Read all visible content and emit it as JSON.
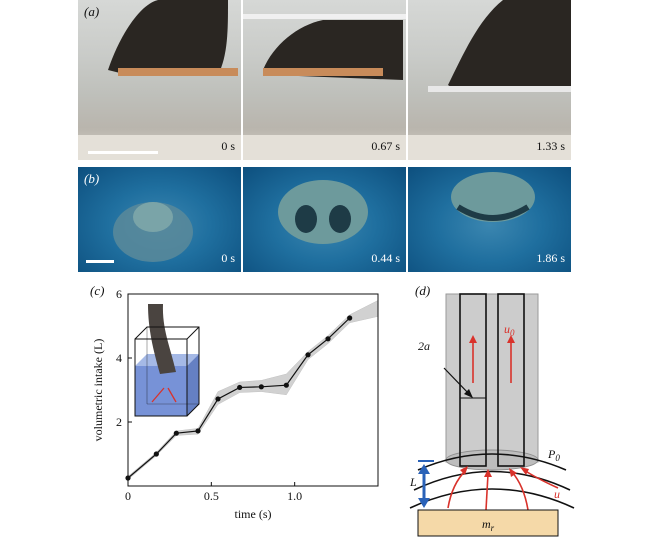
{
  "panel_a": {
    "label": "(a)",
    "frames": [
      {
        "time": "0 s"
      },
      {
        "time": "0.67 s"
      },
      {
        "time": "1.33 s"
      }
    ]
  },
  "panel_b": {
    "label": "(b)",
    "frames": [
      {
        "time": "0 s"
      },
      {
        "time": "0.44 s"
      },
      {
        "time": "1.86 s"
      }
    ]
  },
  "panel_c": {
    "label": "(c)"
  },
  "panel_d": {
    "label": "(d)",
    "labels": {
      "two_a": "2a",
      "u0_base": "u",
      "u0_sub": "0",
      "P0_base": "P",
      "P0_sub": "0",
      "u": "u",
      "L": "L",
      "mr_base": "m",
      "mr_sub": "r"
    }
  },
  "colors": {
    "arrow_red": "#d9322b",
    "arrow_blue": "#2a62b8",
    "plate": "#f5d9a8",
    "trunk": "#c9c9c9"
  },
  "chart_data": {
    "type": "line",
    "xlabel": "time (s)",
    "ylabel": "volumetric intake (L)",
    "xlim": [
      0,
      1.5
    ],
    "ylim": [
      0,
      6
    ],
    "xticks": [
      "0",
      "0.5",
      "1.0"
    ],
    "yticks": [
      "2",
      "4",
      "6"
    ],
    "series": [
      {
        "x": [
          0.0,
          0.17,
          0.29,
          0.42,
          0.54,
          0.67,
          0.8,
          0.95,
          1.08,
          1.2,
          1.33
        ],
        "y": [
          0.25,
          1.0,
          1.65,
          1.72,
          2.72,
          3.08,
          3.1,
          3.15,
          4.1,
          4.6,
          5.25
        ]
      }
    ],
    "band_upper": [
      0.3,
      1.05,
      1.72,
      1.8,
      2.95,
      3.25,
      3.3,
      3.5,
      4.2,
      4.7,
      5.35,
      5.8
    ],
    "band_lower": [
      0.2,
      0.95,
      1.58,
      1.62,
      2.55,
      2.92,
      2.95,
      2.85,
      3.95,
      4.45,
      5.1,
      5.3
    ],
    "band_x": [
      0.0,
      0.17,
      0.29,
      0.42,
      0.54,
      0.67,
      0.8,
      0.95,
      1.08,
      1.2,
      1.33,
      1.5
    ]
  }
}
